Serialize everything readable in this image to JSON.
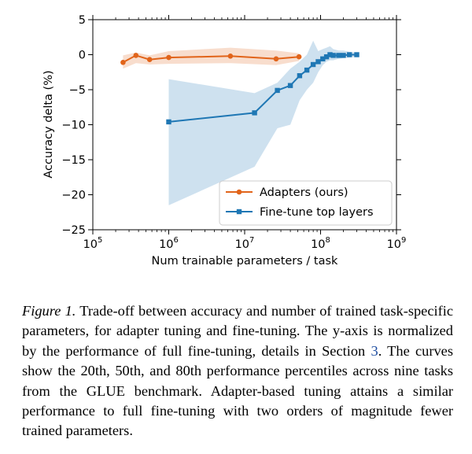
{
  "chart_data": {
    "type": "line",
    "xscale": "log",
    "xlim": [
      100000,
      1000000000
    ],
    "ylim": [
      -25,
      5
    ],
    "xlabel": "Num trainable parameters / task",
    "ylabel": "Accuracy delta (%)",
    "x_ticks": [
      100000,
      1000000,
      10000000,
      100000000,
      1000000000
    ],
    "x_tick_labels": [
      {
        "base": "10",
        "exp": "5"
      },
      {
        "base": "10",
        "exp": "6"
      },
      {
        "base": "10",
        "exp": "7"
      },
      {
        "base": "10",
        "exp": "8"
      },
      {
        "base": "10",
        "exp": "9"
      }
    ],
    "y_ticks": [
      5,
      0,
      -5,
      -10,
      -15,
      -20,
      -25
    ],
    "y_tick_labels": [
      "5",
      "0",
      "−5",
      "−10",
      "−15",
      "−20",
      "−25"
    ],
    "legend_position": "lower-right",
    "series": [
      {
        "name": "Adapters (ours)",
        "color": "#e1641a",
        "marker": "circle",
        "x": [
          250000,
          370000,
          560000,
          1000000,
          6500000,
          26000000,
          52000000
        ],
        "y": [
          -1.1,
          -0.1,
          -0.7,
          -0.4,
          -0.2,
          -0.6,
          -0.3
        ],
        "band_upper": [
          -0.1,
          0.3,
          -0.1,
          0.5,
          1.0,
          0.6,
          0.2
        ],
        "band_lower": [
          -2.0,
          -1.2,
          -1.4,
          -1.3,
          -1.2,
          -1.5,
          -0.9
        ]
      },
      {
        "name": "Fine-tune top layers",
        "color": "#1f77b4",
        "marker": "square",
        "x": [
          1000000,
          13500000,
          27000000,
          40000000,
          53000000,
          66000000,
          80000000,
          93000000,
          107000000,
          120000000,
          133000000,
          147000000,
          173000000,
          200000000,
          240000000,
          300000000
        ],
        "y": [
          -9.6,
          -8.3,
          -5.1,
          -4.4,
          -3.0,
          -2.2,
          -1.4,
          -1.0,
          -0.6,
          -0.3,
          0.0,
          -0.1,
          -0.1,
          -0.1,
          0.0,
          0.0
        ],
        "band_upper": [
          -3.5,
          -5.5,
          -4.0,
          -2.0,
          -1.0,
          0.0,
          2.0,
          0.5,
          0.8,
          1.0,
          1.2,
          0.8,
          0.6,
          0.6,
          0.4,
          0.3
        ],
        "band_lower": [
          -21.5,
          -16.0,
          -10.5,
          -10.0,
          -6.5,
          -5.0,
          -4.0,
          -2.5,
          -1.5,
          -1.0,
          -0.8,
          -0.8,
          -0.6,
          -0.5,
          -0.4,
          -0.3
        ]
      }
    ]
  },
  "caption": {
    "label": "Figure 1.",
    "text_before_ref": " Trade-off between accuracy and number of trained task-specific parameters, for adapter tuning and fine-tuning. The y-axis is normalized by the performance of full fine-tuning, details in Section ",
    "ref": "3",
    "text_after_ref": ". The curves show the 20th, 50th, and 80th performance percentiles across nine tasks from the GLUE benchmark. Adapter-based tuning attains a similar performance to full fine-tuning with two orders of magnitude fewer trained parameters."
  }
}
